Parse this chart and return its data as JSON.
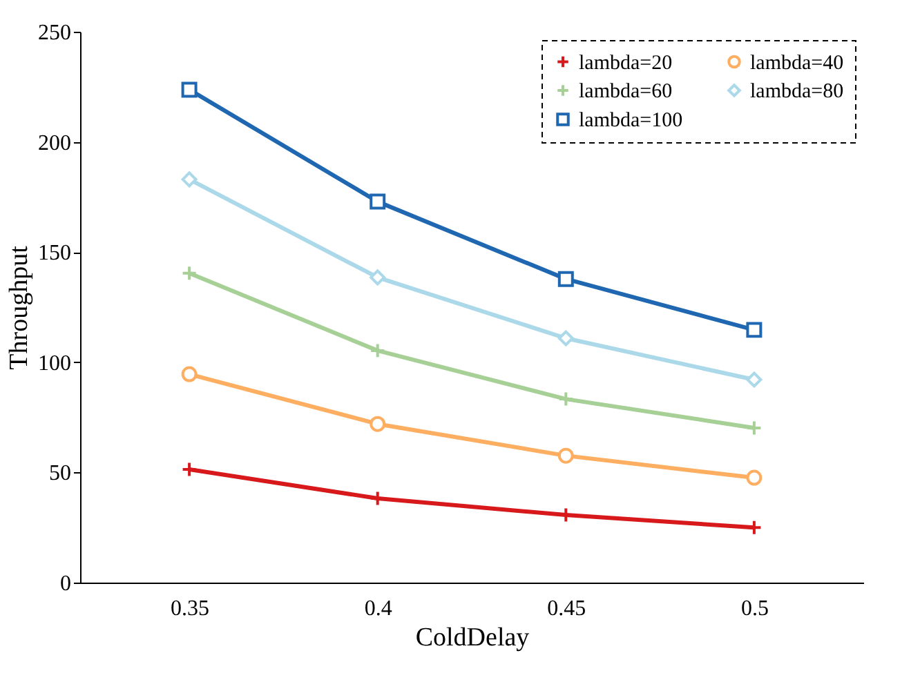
{
  "chart_data": {
    "type": "line",
    "xlabel": "ColdDelay",
    "ylabel": "Throughput",
    "categories": [
      "0.35",
      "0.4",
      "0.45",
      "0.5"
    ],
    "ylim": [
      0,
      250
    ],
    "yticks": [
      0,
      50,
      100,
      150,
      200,
      250
    ],
    "grid": false,
    "legend": "top right",
    "series": [
      {
        "name": "lambda=20",
        "color": "#d7191c",
        "marker": "cross",
        "values": [
          51.4,
          38.2,
          30.7,
          25
        ]
      },
      {
        "name": "lambda=40",
        "color": "#fdae61",
        "marker": "circle",
        "values": [
          94.6,
          72,
          57.6,
          47.6
        ]
      },
      {
        "name": "lambda=60",
        "color": "#a6d096",
        "marker": "cross",
        "values": [
          140.4,
          105.3,
          83.3,
          70.2
        ]
      },
      {
        "name": "lambda=80",
        "color": "#abd9e9",
        "marker": "diamond",
        "values": [
          183,
          138.5,
          110.9,
          92.1
        ]
      },
      {
        "name": "lambda=100",
        "color": "#1f67b1",
        "marker": "square",
        "values": [
          223.7,
          172.9,
          137.8,
          114.7
        ]
      }
    ]
  }
}
